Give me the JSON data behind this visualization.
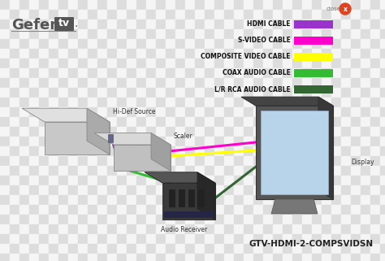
{
  "bg_light": "#e8e8e8",
  "bg_dark": "#d0d0d0",
  "model_text": "GTV-HDMI-2-COMPSVIDSN",
  "legend_items": [
    {
      "label": "HDMI CABLE",
      "color": "#9933cc"
    },
    {
      "label": "S-VIDEO CABLE",
      "color": "#ff00cc"
    },
    {
      "label": "COMPOSITE VIDEO CABLE",
      "color": "#ffff00"
    },
    {
      "label": "COAX AUDIO CABLE",
      "color": "#33bb33"
    },
    {
      "label": "L/R RCA AUDIO CABLE",
      "color": "#336633"
    }
  ],
  "checker_size": 12,
  "checker_c1": "#dddddd",
  "checker_c2": "#f5f5f5"
}
